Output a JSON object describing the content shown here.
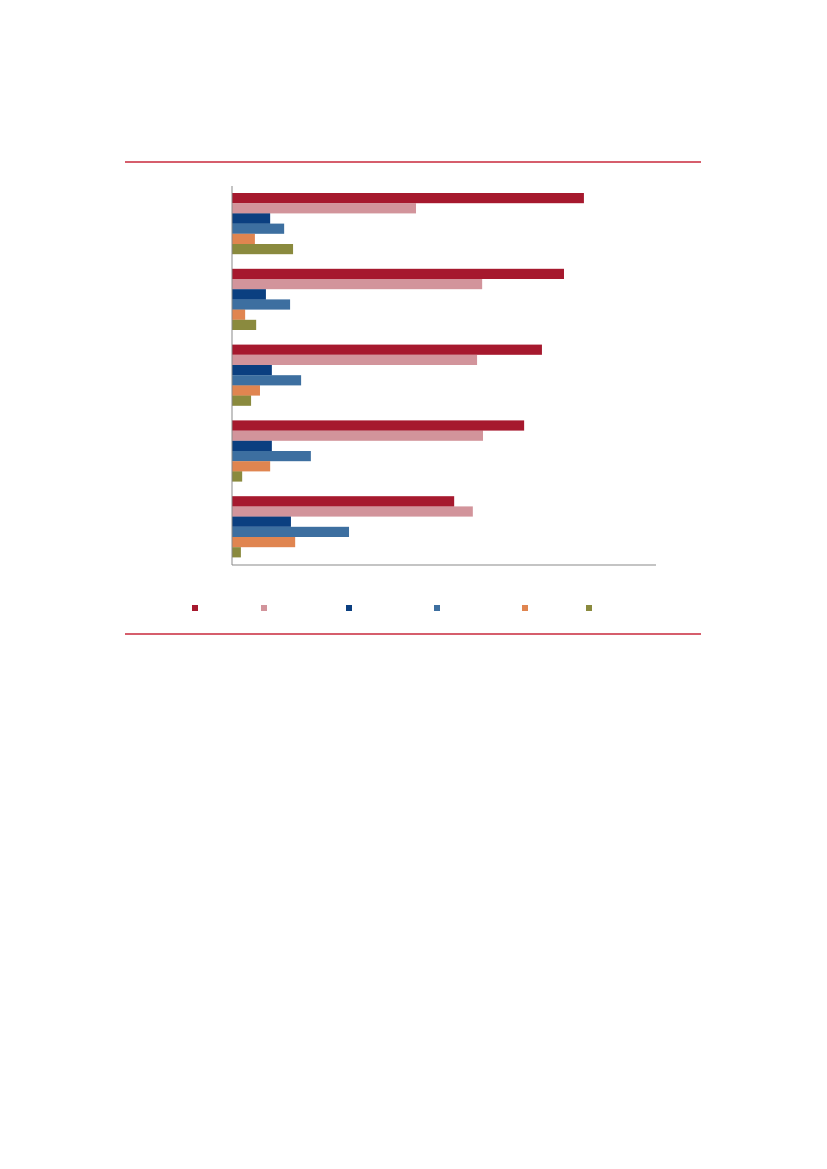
{
  "chart_data": {
    "type": "hbar",
    "categories": [
      null,
      null,
      null,
      null,
      null
    ],
    "xlim": [
      0,
      100
    ],
    "series": [
      {
        "color": "#a6192e",
        "values": [
          83.0,
          78.3,
          73.1,
          68.9,
          52.4
        ]
      },
      {
        "color": "#d2949b",
        "values": [
          43.4,
          59.0,
          57.8,
          59.2,
          56.8
        ]
      },
      {
        "color": "#0b3f80",
        "values": [
          9.0,
          8.0,
          9.4,
          9.4,
          13.9
        ]
      },
      {
        "color": "#3d6fa0",
        "values": [
          12.3,
          13.7,
          16.3,
          18.6,
          27.6
        ]
      },
      {
        "color": "#e08550",
        "values": [
          5.4,
          3.1,
          6.6,
          9.0,
          14.9
        ]
      },
      {
        "color": "#8a8a3e",
        "values": [
          14.4,
          5.7,
          4.5,
          2.4,
          2.1
        ]
      }
    ]
  }
}
